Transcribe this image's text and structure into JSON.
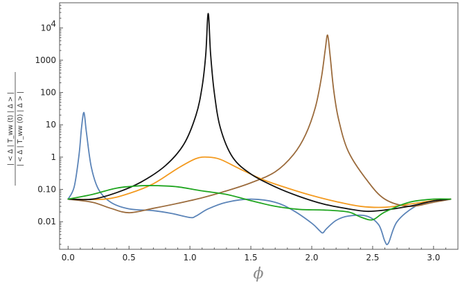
{
  "chart_data": {
    "type": "line",
    "title": "",
    "xlabel": "ϕ",
    "ylabel_numerator": "| < Δ | T_ww (t) | Δ > |",
    "ylabel_denominator": "| < Δ | T_ww (0) | Δ > |",
    "yscale": "log",
    "xlim": [
      -0.07,
      3.2
    ],
    "ylim": [
      0.0014,
      60000
    ],
    "grid": false,
    "x_ticks": [
      {
        "value": 0.0,
        "label": "0.0"
      },
      {
        "value": 0.5,
        "label": "0.5"
      },
      {
        "value": 1.0,
        "label": "1.0"
      },
      {
        "value": 1.5,
        "label": "1.5"
      },
      {
        "value": 2.0,
        "label": "2.0"
      },
      {
        "value": 2.5,
        "label": "2.5"
      },
      {
        "value": 3.0,
        "label": "3.0"
      }
    ],
    "y_ticks": [
      {
        "value": 0.01,
        "label": "0.01"
      },
      {
        "value": 0.1,
        "label": "0.10"
      },
      {
        "value": 1,
        "label": "1"
      },
      {
        "value": 10,
        "label": "10"
      },
      {
        "value": 100,
        "label": "100"
      },
      {
        "value": 1000,
        "label": "1000"
      },
      {
        "value": 10000,
        "label": "10^4",
        "base": "10",
        "exponent": "4"
      }
    ],
    "series": [
      {
        "color": "#5b84b8",
        "x": [
          0.0,
          0.05,
          0.09,
          0.11,
          0.13,
          0.15,
          0.19,
          0.25,
          0.35,
          0.5,
          0.7,
          0.85,
          1.0,
          1.05,
          1.15,
          1.3,
          1.5,
          1.7,
          1.85,
          2.0,
          2.06,
          2.09,
          2.12,
          2.2,
          2.3,
          2.45,
          2.55,
          2.6,
          2.63,
          2.7,
          2.85,
          3.0,
          3.14
        ],
        "y": [
          0.05,
          0.12,
          1.2,
          8.0,
          24.0,
          6.0,
          0.5,
          0.1,
          0.04,
          0.025,
          0.022,
          0.018,
          0.0135,
          0.015,
          0.025,
          0.04,
          0.05,
          0.04,
          0.022,
          0.009,
          0.0055,
          0.0045,
          0.006,
          0.011,
          0.015,
          0.015,
          0.008,
          0.0025,
          0.0022,
          0.01,
          0.03,
          0.045,
          0.05
        ]
      },
      {
        "color": "#9b6b3c",
        "x": [
          0.0,
          0.2,
          0.35,
          0.5,
          0.7,
          0.9,
          1.1,
          1.3,
          1.5,
          1.7,
          1.85,
          1.95,
          2.03,
          2.08,
          2.11,
          2.13,
          2.15,
          2.18,
          2.22,
          2.3,
          2.45,
          2.6,
          2.8,
          3.0,
          3.14
        ],
        "y": [
          0.05,
          0.04,
          0.026,
          0.019,
          0.026,
          0.037,
          0.055,
          0.09,
          0.16,
          0.35,
          1.2,
          5.0,
          35.0,
          300.0,
          2000.0,
          6000.0,
          1500.0,
          120.0,
          15.0,
          1.5,
          0.2,
          0.05,
          0.03,
          0.04,
          0.05
        ]
      },
      {
        "color": "#f39a1f",
        "x": [
          0.0,
          0.3,
          0.5,
          0.7,
          0.9,
          1.05,
          1.15,
          1.25,
          1.4,
          1.6,
          1.8,
          2.0,
          2.2,
          2.4,
          2.6,
          2.8,
          3.0,
          3.14
        ],
        "y": [
          0.05,
          0.05,
          0.075,
          0.15,
          0.45,
          0.9,
          1.0,
          0.85,
          0.45,
          0.2,
          0.11,
          0.065,
          0.042,
          0.03,
          0.028,
          0.035,
          0.045,
          0.05
        ]
      },
      {
        "color": "#111111",
        "x": [
          0.0,
          0.2,
          0.4,
          0.6,
          0.8,
          0.95,
          1.05,
          1.1,
          1.13,
          1.15,
          1.17,
          1.2,
          1.25,
          1.35,
          1.5,
          1.7,
          1.9,
          2.1,
          2.3,
          2.45,
          2.6,
          2.8,
          3.0,
          3.14
        ],
        "y": [
          0.05,
          0.05,
          0.08,
          0.17,
          0.55,
          2.5,
          20.0,
          150.0,
          1500.0,
          28000.0,
          1500.0,
          100.0,
          8.0,
          1.0,
          0.3,
          0.12,
          0.06,
          0.035,
          0.025,
          0.021,
          0.023,
          0.03,
          0.044,
          0.05
        ]
      },
      {
        "color": "#1fa51f",
        "x": [
          0.0,
          0.2,
          0.4,
          0.6,
          0.75,
          0.9,
          1.1,
          1.3,
          1.5,
          1.7,
          1.9,
          2.1,
          2.3,
          2.4,
          2.5,
          2.6,
          2.8,
          3.0,
          3.14
        ],
        "y": [
          0.05,
          0.07,
          0.11,
          0.13,
          0.13,
          0.12,
          0.09,
          0.07,
          0.045,
          0.03,
          0.024,
          0.023,
          0.02,
          0.014,
          0.0115,
          0.02,
          0.04,
          0.05,
          0.05
        ]
      }
    ]
  }
}
